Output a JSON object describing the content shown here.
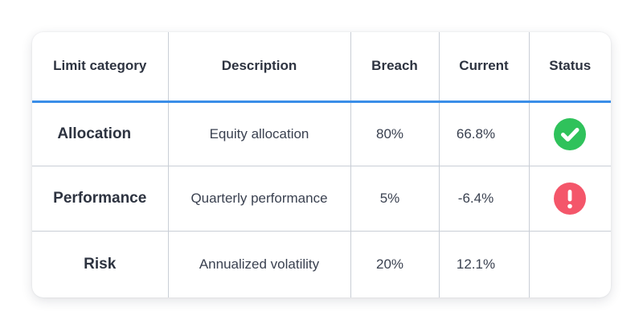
{
  "table": {
    "headers": {
      "category": "Limit category",
      "description": "Description",
      "breach": "Breach",
      "current": "Current",
      "status": "Status"
    },
    "rows": [
      {
        "category": "Allocation",
        "description": "Equity allocation",
        "breach": "80%",
        "current": "66.8%",
        "status_icon": "check-circle-icon",
        "status_color": "#2fc25b"
      },
      {
        "category": "Performance",
        "description": "Quarterly performance",
        "breach": "5%",
        "current": "-6.4%",
        "status_icon": "exclamation-circle-icon",
        "status_color": "#f4566a"
      },
      {
        "category": "Risk",
        "description": "Annualized volatility",
        "breach": "20%",
        "current": "12.1%",
        "status_icon": "",
        "status_color": ""
      }
    ]
  },
  "colors": {
    "header_accent": "#3a8ee8",
    "text": "#2d3340",
    "grid": "#c9ced6"
  }
}
